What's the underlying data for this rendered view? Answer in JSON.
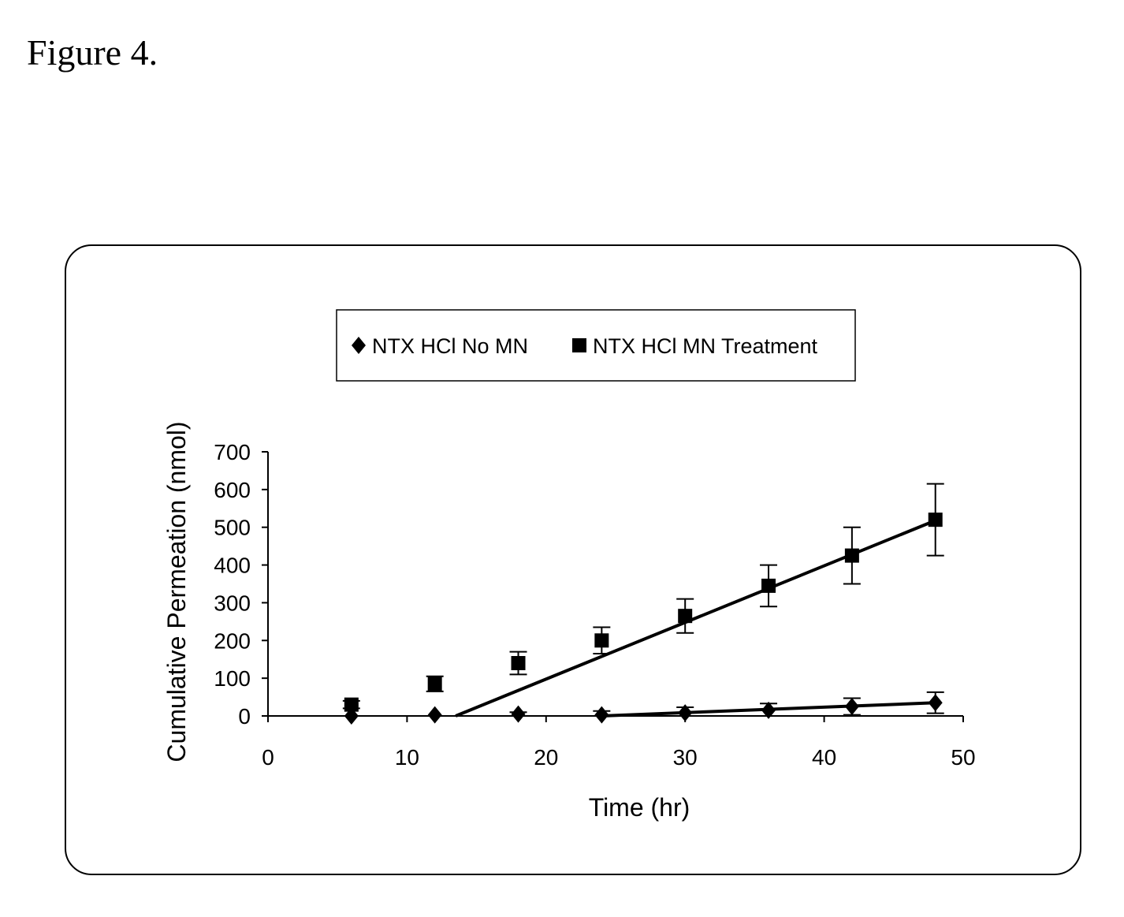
{
  "figure_title": "Figure 4.",
  "chart_data": {
    "type": "scatter",
    "xlabel": "Time (hr)",
    "ylabel": "Cumulative Permeation (nmol)",
    "xlim": [
      0,
      50
    ],
    "ylim": [
      0,
      700
    ],
    "x_ticks": [
      0,
      10,
      20,
      30,
      40,
      50
    ],
    "y_ticks": [
      0,
      100,
      200,
      300,
      400,
      500,
      600,
      700
    ],
    "grid": false,
    "legend_position": "top-center",
    "series": [
      {
        "name": "NTX HCl No MN",
        "marker": "diamond",
        "color": "#000000",
        "x": [
          6,
          12,
          18,
          24,
          30,
          36,
          42,
          48
        ],
        "y": [
          0,
          3,
          5,
          3,
          8,
          15,
          25,
          35
        ],
        "error": [
          0,
          0,
          5,
          10,
          15,
          18,
          22,
          28
        ],
        "trendline": {
          "x": [
            24,
            48
          ],
          "y": [
            0,
            35
          ]
        }
      },
      {
        "name": "NTX HCl MN Treatment",
        "marker": "square",
        "color": "#000000",
        "x": [
          6,
          12,
          18,
          24,
          30,
          36,
          42,
          48
        ],
        "y": [
          30,
          85,
          140,
          200,
          265,
          345,
          425,
          520
        ],
        "error": [
          10,
          20,
          30,
          35,
          45,
          55,
          75,
          95
        ],
        "trendline": {
          "x": [
            13.5,
            48
          ],
          "y": [
            0,
            518
          ]
        }
      }
    ]
  }
}
